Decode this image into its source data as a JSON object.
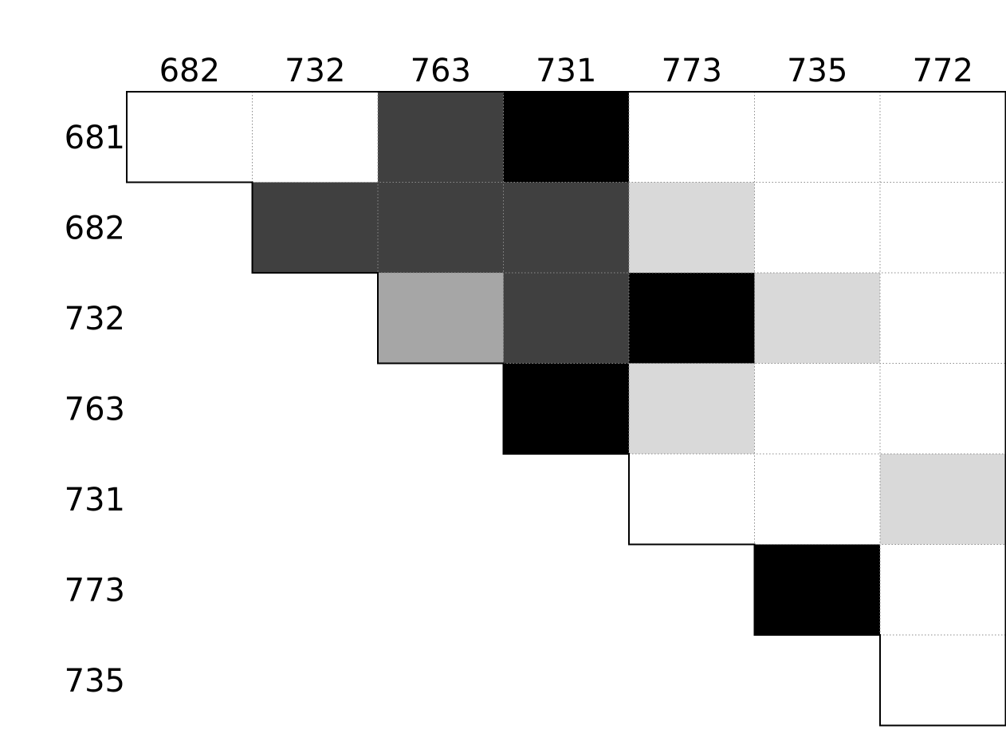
{
  "chart_data": {
    "type": "heatmap",
    "title": "",
    "xlabel": "",
    "ylabel": "",
    "x_categories": [
      "682",
      "732",
      "763",
      "731",
      "773",
      "735",
      "772"
    ],
    "y_categories": [
      "681",
      "682",
      "732",
      "763",
      "731",
      "773",
      "735"
    ],
    "layout": "upper-triangle",
    "value_scale": {
      "min": 0,
      "max": 4,
      "meaning": "darker shade = higher level"
    },
    "shade_colors": [
      "#ffffff",
      "#d9d9d9",
      "#a6a6a6",
      "#404040",
      "#000000"
    ],
    "values": [
      [
        0,
        0,
        3,
        4,
        0,
        0,
        0
      ],
      [
        null,
        3,
        3,
        3,
        1,
        0,
        0
      ],
      [
        null,
        null,
        2,
        3,
        4,
        1,
        0
      ],
      [
        null,
        null,
        null,
        4,
        1,
        0,
        0
      ],
      [
        null,
        null,
        null,
        null,
        0,
        0,
        1
      ],
      [
        null,
        null,
        null,
        null,
        null,
        4,
        0
      ],
      [
        null,
        null,
        null,
        null,
        null,
        null,
        0
      ]
    ],
    "grid": true,
    "legend": "none"
  }
}
